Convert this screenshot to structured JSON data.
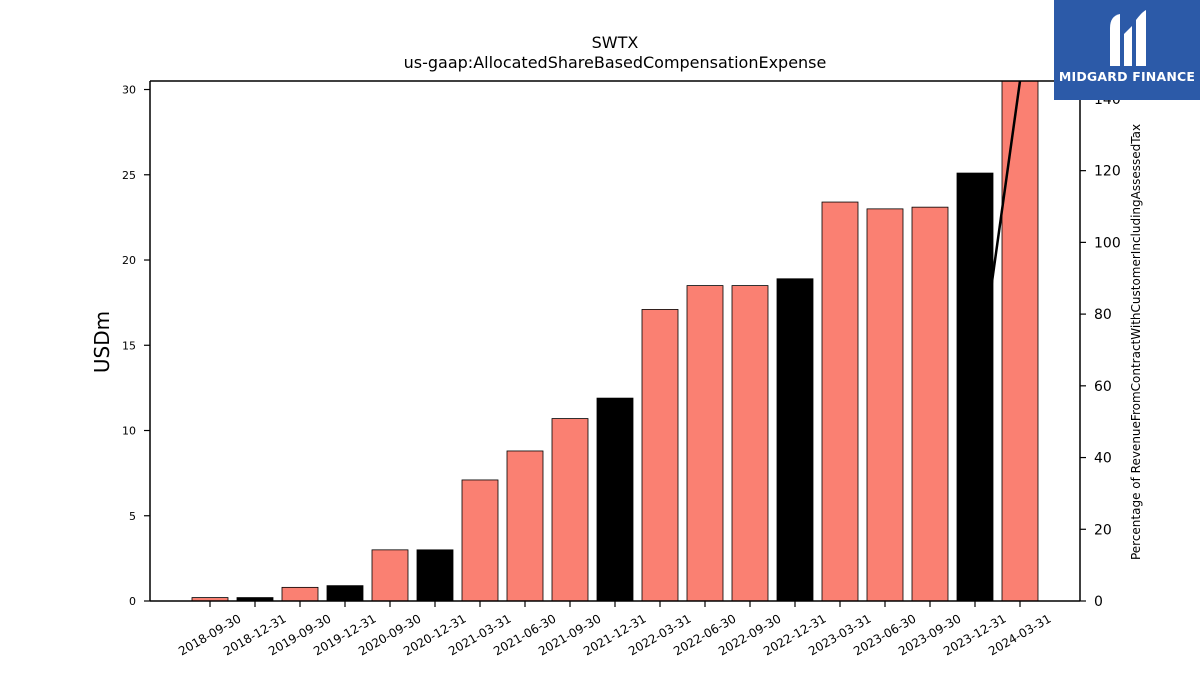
{
  "chart_data": {
    "type": "bar",
    "title": "SWTX",
    "subtitle": "us-gaap:AllocatedShareBasedCompensationExpense",
    "ylabel": "USDm",
    "y2label": "Percentage of RevenueFromContractWithCustomerIncludingAssessedTax",
    "ylim": [
      0,
      30.5
    ],
    "y2lim": [
      0,
      145
    ],
    "yticks": [
      0,
      5,
      10,
      15,
      20,
      25,
      30
    ],
    "y2ticks": [
      0,
      20,
      40,
      60,
      80,
      100,
      120,
      140
    ],
    "categories": [
      "2018-09-30",
      "2018-12-31",
      "2019-09-30",
      "2019-12-31",
      "2020-09-30",
      "2020-12-31",
      "2021-03-31",
      "2021-06-30",
      "2021-09-30",
      "2021-12-31",
      "2022-03-31",
      "2022-06-30",
      "2022-09-30",
      "2022-12-31",
      "2023-03-31",
      "2023-06-30",
      "2023-09-30",
      "2023-12-31",
      "2024-03-31"
    ],
    "values": [
      0.2,
      0.2,
      0.8,
      0.9,
      3.0,
      3.0,
      7.1,
      8.8,
      10.7,
      11.9,
      17.1,
      18.5,
      18.5,
      18.9,
      23.4,
      23.0,
      23.1,
      25.1,
      31.0
    ],
    "bar_colors": [
      "#fa8072",
      "#000000",
      "#fa8072",
      "#000000",
      "#fa8072",
      "#000000",
      "#fa8072",
      "#fa8072",
      "#fa8072",
      "#000000",
      "#fa8072",
      "#fa8072",
      "#fa8072",
      "#000000",
      "#fa8072",
      "#fa8072",
      "#fa8072",
      "#000000",
      "#fa8072"
    ],
    "line": {
      "x": [
        "2023-12-31",
        "2024-03-31"
      ],
      "y": [
        55,
        145
      ],
      "color": "#000000"
    },
    "grid": false
  },
  "logo": {
    "text": "MIDGARD FINANCE",
    "background": "#2c5aa8"
  }
}
